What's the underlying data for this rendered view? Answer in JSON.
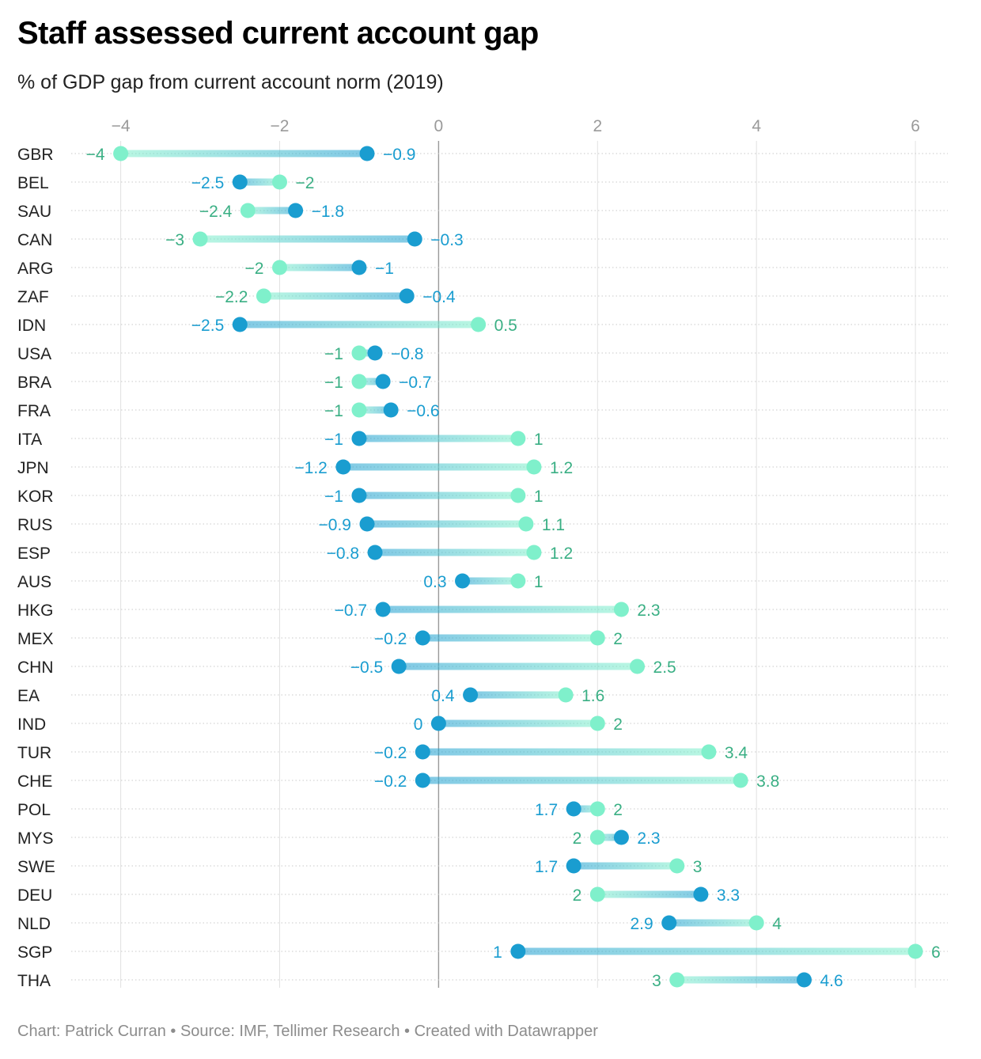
{
  "title": "Staff assessed current account gap",
  "subtitle": "% of GDP gap from current account norm (2019)",
  "footer": "Chart: Patrick Curran • Source: IMF, Tellimer Research • Created with Datawrapper",
  "chart_data": {
    "type": "dumbbell",
    "xlim": [
      -4.1,
      6.4
    ],
    "x_ticks": [
      -4,
      -2,
      0,
      2,
      4,
      6
    ],
    "x_tick_labels": [
      "−4",
      "−2",
      "0",
      "2",
      "4",
      "6"
    ],
    "grid": true,
    "colors": {
      "dark": "#1a9dd0",
      "light": "#7ff0cb",
      "dark_text": "#1a9dd0",
      "light_text": "#3aaf84"
    },
    "rows": [
      {
        "category": "GBR",
        "dark": -0.9,
        "light": -4,
        "dark_label": "−0.9",
        "light_label": "−4"
      },
      {
        "category": "BEL",
        "dark": -2.5,
        "light": -2,
        "dark_label": "−2.5",
        "light_label": "−2"
      },
      {
        "category": "SAU",
        "dark": -1.8,
        "light": -2.4,
        "dark_label": "−1.8",
        "light_label": "−2.4"
      },
      {
        "category": "CAN",
        "dark": -0.3,
        "light": -3,
        "dark_label": "−0.3",
        "light_label": "−3"
      },
      {
        "category": "ARG",
        "dark": -1,
        "light": -2,
        "dark_label": "−1",
        "light_label": "−2"
      },
      {
        "category": "ZAF",
        "dark": -0.4,
        "light": -2.2,
        "dark_label": "−0.4",
        "light_label": "−2.2"
      },
      {
        "category": "IDN",
        "dark": -2.5,
        "light": 0.5,
        "dark_label": "−2.5",
        "light_label": "0.5"
      },
      {
        "category": "USA",
        "dark": -0.8,
        "light": -1,
        "dark_label": "−0.8",
        "light_label": "−1"
      },
      {
        "category": "BRA",
        "dark": -0.7,
        "light": -1,
        "dark_label": "−0.7",
        "light_label": "−1"
      },
      {
        "category": "FRA",
        "dark": -0.6,
        "light": -1,
        "dark_label": "−0.6",
        "light_label": "−1"
      },
      {
        "category": "ITA",
        "dark": -1,
        "light": 1,
        "dark_label": "−1",
        "light_label": "1"
      },
      {
        "category": "JPN",
        "dark": -1.2,
        "light": 1.2,
        "dark_label": "−1.2",
        "light_label": "1.2"
      },
      {
        "category": "KOR",
        "dark": -1,
        "light": 1,
        "dark_label": "−1",
        "light_label": "1"
      },
      {
        "category": "RUS",
        "dark": -0.9,
        "light": 1.1,
        "dark_label": "−0.9",
        "light_label": "1.1"
      },
      {
        "category": "ESP",
        "dark": -0.8,
        "light": 1.2,
        "dark_label": "−0.8",
        "light_label": "1.2"
      },
      {
        "category": "AUS",
        "dark": 0.3,
        "light": 1,
        "dark_label": "0.3",
        "light_label": "1"
      },
      {
        "category": "HKG",
        "dark": -0.7,
        "light": 2.3,
        "dark_label": "−0.7",
        "light_label": "2.3"
      },
      {
        "category": "MEX",
        "dark": -0.2,
        "light": 2,
        "dark_label": "−0.2",
        "light_label": "2"
      },
      {
        "category": "CHN",
        "dark": -0.5,
        "light": 2.5,
        "dark_label": "−0.5",
        "light_label": "2.5"
      },
      {
        "category": "EA",
        "dark": 0.4,
        "light": 1.6,
        "dark_label": "0.4",
        "light_label": "1.6"
      },
      {
        "category": "IND",
        "dark": 0,
        "light": 2,
        "dark_label": "0",
        "light_label": "2"
      },
      {
        "category": "TUR",
        "dark": -0.2,
        "light": 3.4,
        "dark_label": "−0.2",
        "light_label": "3.4"
      },
      {
        "category": "CHE",
        "dark": -0.2,
        "light": 3.8,
        "dark_label": "−0.2",
        "light_label": "3.8"
      },
      {
        "category": "POL",
        "dark": 1.7,
        "light": 2,
        "dark_label": "1.7",
        "light_label": "2"
      },
      {
        "category": "MYS",
        "dark": 2.3,
        "light": 2,
        "dark_label": "2.3",
        "light_label": "2"
      },
      {
        "category": "SWE",
        "dark": 1.7,
        "light": 3,
        "dark_label": "1.7",
        "light_label": "3"
      },
      {
        "category": "DEU",
        "dark": 3.3,
        "light": 2,
        "dark_label": "3.3",
        "light_label": "2"
      },
      {
        "category": "NLD",
        "dark": 2.9,
        "light": 4,
        "dark_label": "2.9",
        "light_label": "4"
      },
      {
        "category": "SGP",
        "dark": 1,
        "light": 6,
        "dark_label": "1",
        "light_label": "6"
      },
      {
        "category": "THA",
        "dark": 4.6,
        "light": 3,
        "dark_label": "4.6",
        "light_label": "3"
      }
    ]
  }
}
